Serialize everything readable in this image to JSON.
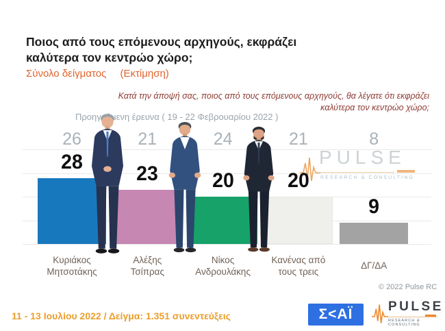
{
  "title": {
    "line1": "Ποιος από τους επόμενους αρχηγούς, εκφράζει",
    "line2": "καλύτερα τον κεντρώο χώρο;"
  },
  "subtitle": {
    "sample": "Σύνολο δείγματος",
    "estimate": "(Εκτίμηση)"
  },
  "question": {
    "line1": "Κατά την άποψή σας, ποιος από τους επόμενους αρχηγούς, θα λέγατε ότι εκφράζει",
    "line2": "καλύτερα τον κεντρώο χώρο;"
  },
  "previous_survey_note": "Προηγούμενη έρευνα ( 19 - 22 Φεβρουαρίου  2022 )",
  "chart_data": {
    "type": "bar",
    "title": "Ποιος από τους επόμενους αρχηγούς, εκφράζει καλύτερα τον κεντρώο χώρο;",
    "categories": [
      "Κυριάκος Μητσοτάκης",
      "Αλέξης Τσίπρας",
      "Νίκος Ανδρουλάκης",
      "Κανένας από τους τρεις",
      "ΔΓ/ΔΑ"
    ],
    "category_lines": [
      [
        "Κυριάκος",
        "Μητσοτάκης"
      ],
      [
        "Αλέξης",
        "Τσίπρας"
      ],
      [
        "Νίκος",
        "Ανδρουλάκης"
      ],
      [
        "Κανένας από",
        "τους τρεις"
      ],
      [
        "ΔΓ/ΔΑ"
      ]
    ],
    "series": [
      {
        "name": "Προηγούμενη έρευνα (19 - 22 Φεβρουαρίου 2022)",
        "values": [
          26,
          21,
          24,
          21,
          8
        ]
      },
      {
        "name": "11 - 13 Ιουλίου 2022",
        "values": [
          28,
          23,
          20,
          20,
          9
        ]
      }
    ],
    "bar_colors": [
      "#1878bd",
      "#c687b3",
      "#16a269",
      "#efefec",
      "#a3a3a3"
    ],
    "ylim": [
      0,
      40
    ],
    "gridlines": [
      0,
      10,
      20,
      30,
      40
    ],
    "grid": true,
    "legend_position": "none",
    "xlabel": "",
    "ylabel": ""
  },
  "watermark": {
    "word": "PULSE",
    "sub": "RESEARCH & CONSULTING"
  },
  "copyright": "© 2022 Pulse RC",
  "footer": {
    "fieldwork": "11 - 13 Ιουλίου  2022  /  Δείγμα:  1.351 συνεντεύξεις"
  },
  "logos": {
    "skai_text": "Σ<ΑΪ",
    "pulse_word": "PULSE",
    "pulse_sub": "RESEARCH & CONSULTING"
  },
  "colors": {
    "title": "#1c1c1c",
    "subtitle_orange": "#e0632d",
    "question_maroon": "#8e3a32",
    "prev_gray": "#a9b2b9",
    "footer_orange": "#eb9e2c",
    "skai_blue": "#2e6fe2",
    "pulse_orange": "#ed8a2e"
  }
}
